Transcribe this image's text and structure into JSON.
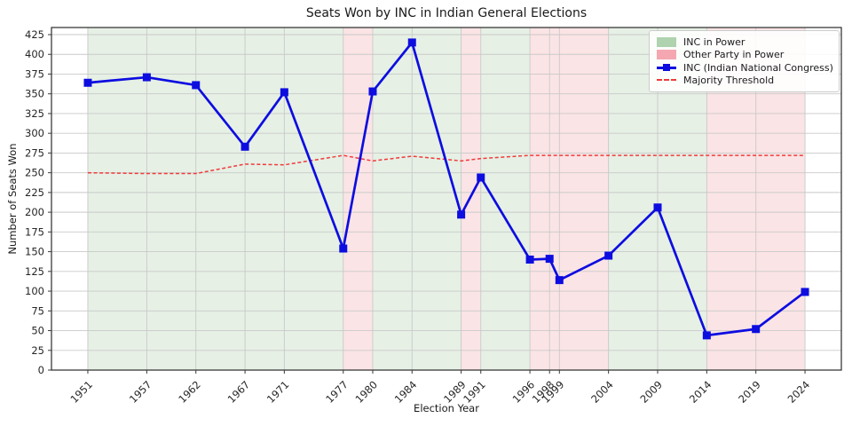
{
  "header": {
    "title": "Seats Won by INC in Indian General Elections"
  },
  "axes": {
    "xlabel": "Election Year",
    "ylabel": "Number of Seats Won"
  },
  "legend": {
    "position": "upper right",
    "items": [
      {
        "label": "INC in Power",
        "swatch": "green-patch"
      },
      {
        "label": "Other Party in Power",
        "swatch": "pink-patch"
      },
      {
        "label": "INC (Indian National Congress)",
        "swatch": "blue-line-square-marker"
      },
      {
        "label": "Majority Threshold",
        "swatch": "red-dashed-line"
      }
    ]
  },
  "colors": {
    "inc_line": "#0d0de0",
    "threshold_line": "#f03b3b",
    "inc_power_band": "#e6f0e5",
    "other_power_band": "#fbe4e5",
    "legend_green_swatch": "#afd3af",
    "legend_pink_swatch": "#f4a7b0",
    "grid": "#c9c9c9",
    "spine": "#3a3a3a",
    "text": "#262626"
  },
  "chart_data": {
    "type": "line",
    "title": "Seats Won by INC in Indian General Elections",
    "xlabel": "Election Year",
    "ylabel": "Number of Seats Won",
    "x": [
      1951,
      1957,
      1962,
      1967,
      1971,
      1977,
      1980,
      1984,
      1989,
      1991,
      1996,
      1998,
      1999,
      2004,
      2009,
      2014,
      2019,
      2024
    ],
    "series": [
      {
        "name": "INC (Indian National Congress)",
        "values": [
          364,
          371,
          361,
          283,
          352,
          154,
          353,
          415,
          197,
          244,
          140,
          141,
          114,
          145,
          206,
          44,
          52,
          99
        ],
        "style": "solid",
        "marker": "square"
      },
      {
        "name": "Majority Threshold",
        "values": [
          250,
          249,
          249,
          261,
          260,
          272,
          265,
          271,
          265,
          268,
          272,
          272,
          272,
          272,
          272,
          272,
          272,
          272
        ],
        "style": "dashed",
        "marker": "none"
      }
    ],
    "power_spans": [
      {
        "from": 1951,
        "to": 1977,
        "label": "INC in Power"
      },
      {
        "from": 1977,
        "to": 1980,
        "label": "Other Party in Power"
      },
      {
        "from": 1980,
        "to": 1989,
        "label": "INC in Power"
      },
      {
        "from": 1989,
        "to": 1991,
        "label": "Other Party in Power"
      },
      {
        "from": 1991,
        "to": 1996,
        "label": "INC in Power"
      },
      {
        "from": 1996,
        "to": 2004,
        "label": "Other Party in Power"
      },
      {
        "from": 2004,
        "to": 2014,
        "label": "INC in Power"
      },
      {
        "from": 2014,
        "to": 2024,
        "label": "Other Party in Power"
      }
    ],
    "xlim": [
      1947.3,
      2027.7
    ],
    "ylim": [
      0,
      434
    ],
    "yticks": [
      0,
      25,
      50,
      75,
      100,
      125,
      150,
      175,
      200,
      225,
      250,
      275,
      300,
      325,
      350,
      375,
      400,
      425
    ],
    "grid": true,
    "legend_position": "upper right"
  }
}
